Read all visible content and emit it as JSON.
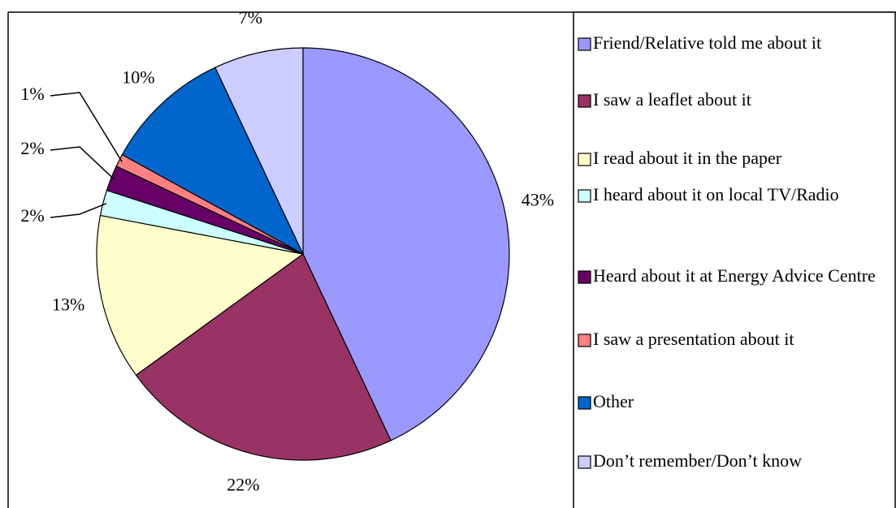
{
  "chart_data": {
    "type": "pie",
    "categories": [
      "Friend/Relative told me about it",
      "I saw a leaflet about it",
      "I read about it in the paper",
      "I heard about it on local TV/Radio",
      "Heard about it at Energy Advice Centre",
      "I saw a presentation about it",
      "Other",
      "Don’t remember/Don’t know"
    ],
    "values": [
      43,
      22,
      13,
      2,
      2,
      1,
      10,
      7
    ],
    "value_labels": [
      "43%",
      "22%",
      "13%",
      "2%",
      "2%",
      "1%",
      "10%",
      "7%"
    ],
    "colors": [
      "#9999ff",
      "#993366",
      "#ffffcc",
      "#ccffff",
      "#660066",
      "#ff8080",
      "#0066cc",
      "#ccccff"
    ],
    "legend": "right"
  }
}
